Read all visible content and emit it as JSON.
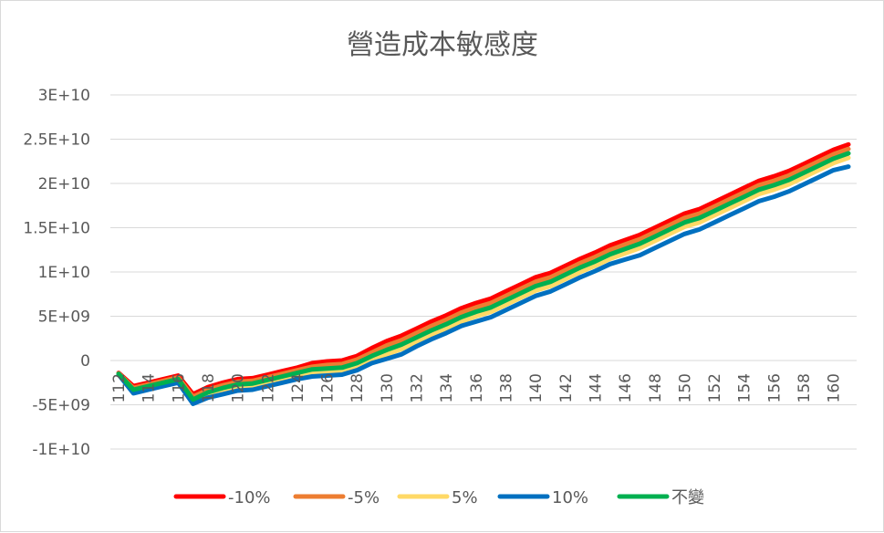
{
  "chart_data": {
    "type": "line",
    "title": "營造成本敏感度",
    "xlabel": "",
    "ylabel": "",
    "x": [
      112,
      113,
      114,
      115,
      116,
      117,
      118,
      119,
      120,
      121,
      122,
      123,
      124,
      125,
      126,
      127,
      128,
      129,
      130,
      131,
      132,
      133,
      134,
      135,
      136,
      137,
      138,
      139,
      140,
      141,
      142,
      143,
      144,
      145,
      146,
      147,
      148,
      149,
      150,
      151,
      152,
      153,
      154,
      155,
      156,
      157,
      158,
      159,
      160,
      161
    ],
    "x_tick_labels": [
      "112",
      "114",
      "116",
      "118",
      "120",
      "122",
      "124",
      "126",
      "128",
      "130",
      "132",
      "134",
      "136",
      "138",
      "140",
      "142",
      "144",
      "146",
      "148",
      "150",
      "152",
      "154",
      "156",
      "158",
      "160"
    ],
    "y_tick_labels": [
      "3E+10",
      "2.5E+10",
      "2E+10",
      "1.5E+10",
      "1E+10",
      "5E+09",
      "0",
      "-5E+09",
      "-1E+10"
    ],
    "ylim": [
      -10000000000,
      30000000000
    ],
    "grid": true,
    "legend_position": "bottom",
    "series": [
      {
        "name": "-10%",
        "color": "#ff0000",
        "values": [
          -1400000000.0,
          -2900000000.0,
          -2500000000.0,
          -2100000000.0,
          -1700000000.0,
          -3800000000.0,
          -3000000000.0,
          -2500000000.0,
          -2100000000.0,
          -2000000000.0,
          -1600000000.0,
          -1200000000.0,
          -800000000.0,
          -300000000.0,
          -100000000.0,
          0.0,
          500000000.0,
          1400000000.0,
          2200000000.0,
          2800000000.0,
          3600000000.0,
          4400000000.0,
          5100000000.0,
          5900000000.0,
          6500000000.0,
          7000000000.0,
          7800000000.0,
          8600000000.0,
          9400000000.0,
          9900000000.0,
          10700000000.0,
          11500000000.0,
          12200000000.0,
          13000000000.0,
          13600000000.0,
          14200000000.0,
          15000000000.0,
          15800000000.0,
          16600000000.0,
          17100000000.0,
          17900000000.0,
          18700000000.0,
          19500000000.0,
          20300000000.0,
          20800000000.0,
          21400000000.0,
          22200000000.0,
          23000000000.0,
          23800000000.0,
          24400000000.0
        ]
      },
      {
        "name": "-5%",
        "color": "#ed7d31",
        "values": [
          -1450000000.0,
          -3100000000.0,
          -2700000000.0,
          -2300000000.0,
          -1900000000.0,
          -4100000000.0,
          -3300000000.0,
          -2800000000.0,
          -2400000000.0,
          -2300000000.0,
          -1900000000.0,
          -1500000000.0,
          -1100000000.0,
          -700000000.0,
          -500000000.0,
          -400000000.0,
          100000000.0,
          900000000.0,
          1700000000.0,
          2300000000.0,
          3100000000.0,
          3900000000.0,
          4600000000.0,
          5400000000.0,
          6000000000.0,
          6500000000.0,
          7300000000.0,
          8100000000.0,
          8900000000.0,
          9400000000.0,
          10200000000.0,
          11000000000.0,
          11700000000.0,
          12500000000.0,
          13100000000.0,
          13700000000.0,
          14500000000.0,
          15300000000.0,
          16100000000.0,
          16600000000.0,
          17400000000.0,
          18200000000.0,
          19000000000.0,
          19800000000.0,
          20300000000.0,
          20900000000.0,
          21700000000.0,
          22500000000.0,
          23300000000.0,
          23900000000.0
        ]
      },
      {
        "name": "5%",
        "color": "#ffd966",
        "values": [
          -1550000000.0,
          -3500000000.0,
          -3100000000.0,
          -2700000000.0,
          -2300000000.0,
          -4600000000.0,
          -3900000000.0,
          -3400000000.0,
          -3000000000.0,
          -2900000000.0,
          -2500000000.0,
          -2100000000.0,
          -1700000000.0,
          -1400000000.0,
          -1200000000.0,
          -1100000000.0,
          -700000000.0,
          100000000.0,
          700000000.0,
          1300000000.0,
          2100000000.0,
          2900000000.0,
          3600000000.0,
          4400000000.0,
          5000000000.0,
          5500000000.0,
          6300000000.0,
          7100000000.0,
          7900000000.0,
          8400000000.0,
          9200000000.0,
          10000000000.0,
          10700000000.0,
          11500000000.0,
          12100000000.0,
          12700000000.0,
          13500000000.0,
          14300000000.0,
          15100000000.0,
          15600000000.0,
          16400000000.0,
          17200000000.0,
          18000000000.0,
          18800000000.0,
          19300000000.0,
          19900000000.0,
          20700000000.0,
          21500000000.0,
          22300000000.0,
          22900000000.0
        ]
      },
      {
        "name": "10%",
        "color": "#0070c0",
        "values": [
          -1600000000.0,
          -3700000000.0,
          -3300000000.0,
          -2900000000.0,
          -2500000000.0,
          -4900000000.0,
          -4200000000.0,
          -3800000000.0,
          -3400000000.0,
          -3300000000.0,
          -2900000000.0,
          -2500000000.0,
          -2100000000.0,
          -1800000000.0,
          -1700000000.0,
          -1600000000.0,
          -1100000000.0,
          -300000000.0,
          200000000.0,
          700000000.0,
          1600000000.0,
          2400000000.0,
          3100000000.0,
          3900000000.0,
          4400000000.0,
          4900000000.0,
          5700000000.0,
          6500000000.0,
          7300000000.0,
          7800000000.0,
          8600000000.0,
          9400000000.0,
          10100000000.0,
          10900000000.0,
          11400000000.0,
          11900000000.0,
          12700000000.0,
          13500000000.0,
          14300000000.0,
          14800000000.0,
          15600000000.0,
          16400000000.0,
          17200000000.0,
          18000000000.0,
          18500000000.0,
          19100000000.0,
          19900000000.0,
          20700000000.0,
          21500000000.0,
          21900000000.0
        ]
      },
      {
        "name": "不變",
        "color": "#00b050",
        "values": [
          -1500000000.0,
          -3300000000.0,
          -2900000000.0,
          -2500000000.0,
          -2100000000.0,
          -4400000000.0,
          -3600000000.0,
          -3100000000.0,
          -2700000000.0,
          -2600000000.0,
          -2200000000.0,
          -1800000000.0,
          -1400000000.0,
          -1000000000.0,
          -900000000.0,
          -800000000.0,
          -300000000.0,
          500000000.0,
          1200000000.0,
          1800000000.0,
          2600000000.0,
          3400000000.0,
          4100000000.0,
          4900000000.0,
          5500000000.0,
          6000000000.0,
          6800000000.0,
          7600000000.0,
          8400000000.0,
          8900000000.0,
          9700000000.0,
          10500000000.0,
          11200000000.0,
          12000000000.0,
          12600000000.0,
          13200000000.0,
          14000000000.0,
          14800000000.0,
          15600000000.0,
          16100000000.0,
          16900000000.0,
          17700000000.0,
          18500000000.0,
          19300000000.0,
          19800000000.0,
          20400000000.0,
          21200000000.0,
          22000000000.0,
          22800000000.0,
          23400000000.0
        ]
      }
    ]
  }
}
